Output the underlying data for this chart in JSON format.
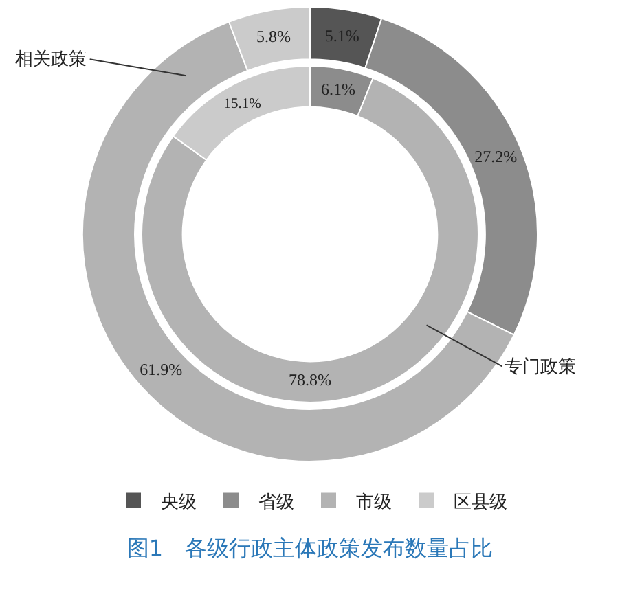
{
  "chart_data": {
    "type": "donut",
    "title": "图1　各级行政主体政策发布数量占比",
    "categories": [
      "央级",
      "省级",
      "市级",
      "区县级"
    ],
    "colors": [
      "#555555",
      "#8c8c8c",
      "#b3b3b3",
      "#cbcbcb"
    ],
    "series": [
      {
        "name": "相关政策",
        "values": [
          5.1,
          27.2,
          61.9,
          5.8
        ],
        "value_labels": [
          "5.1%",
          "27.2%",
          "61.9%",
          "5.8%"
        ]
      },
      {
        "name": "专门政策",
        "values": [
          null,
          6.1,
          78.8,
          15.1
        ],
        "value_labels": [
          null,
          "6.1%",
          "78.8%",
          "15.1%"
        ]
      }
    ],
    "legend": "bottom"
  }
}
